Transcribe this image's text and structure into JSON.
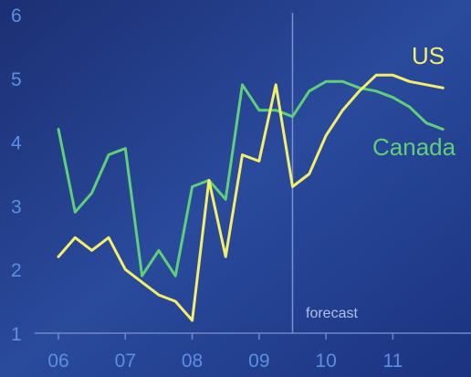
{
  "chart_data": {
    "type": "line",
    "title": "",
    "xlabel": "",
    "ylabel": "",
    "ylim": [
      1,
      6
    ],
    "y_ticks": [
      1,
      2,
      3,
      4,
      5,
      6
    ],
    "x_ticks": [
      "06",
      "07",
      "08",
      "09",
      "10",
      "11"
    ],
    "x_tick_positions": [
      2006,
      2007,
      2008,
      2009,
      2010,
      2011
    ],
    "xlim": [
      2006,
      2011.95
    ],
    "grid": false,
    "forecast_line_x": 2009.5,
    "annotation": "forecast",
    "series": [
      {
        "name": "Canada",
        "color": "#5fcf7a",
        "x": [
          2006.0,
          2006.25,
          2006.5,
          2006.75,
          2007.0,
          2007.25,
          2007.5,
          2007.75,
          2008.0,
          2008.25,
          2008.5,
          2008.75,
          2009.0,
          2009.25,
          2009.5,
          2009.75,
          2010.0,
          2010.25,
          2010.5,
          2010.75,
          2011.0,
          2011.25,
          2011.5,
          2011.75
        ],
        "values": [
          4.2,
          2.9,
          3.2,
          3.8,
          3.9,
          1.9,
          2.3,
          1.9,
          3.3,
          3.4,
          3.1,
          4.9,
          4.5,
          4.5,
          4.4,
          4.8,
          4.95,
          4.95,
          4.85,
          4.8,
          4.7,
          4.55,
          4.3,
          4.2
        ]
      },
      {
        "name": "US",
        "color": "#f3ee6b",
        "x": [
          2006.0,
          2006.25,
          2006.5,
          2006.75,
          2007.0,
          2007.25,
          2007.5,
          2007.75,
          2008.0,
          2008.25,
          2008.5,
          2008.75,
          2009.0,
          2009.25,
          2009.5,
          2009.75,
          2010.0,
          2010.25,
          2010.5,
          2010.75,
          2011.0,
          2011.25,
          2011.5,
          2011.75
        ],
        "values": [
          2.2,
          2.5,
          2.3,
          2.5,
          2.0,
          1.8,
          1.6,
          1.5,
          1.2,
          3.4,
          2.2,
          3.8,
          3.7,
          4.9,
          3.3,
          3.5,
          4.1,
          4.5,
          4.8,
          5.05,
          5.05,
          4.95,
          4.9,
          4.85
        ]
      }
    ]
  }
}
